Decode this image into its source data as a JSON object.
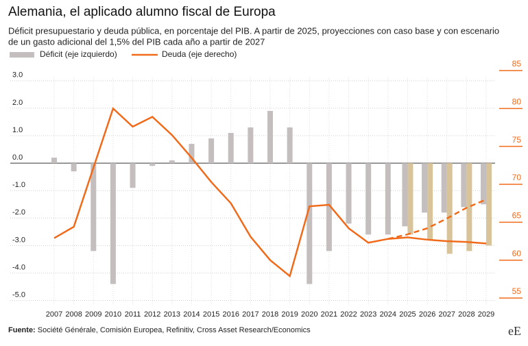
{
  "chart_data": {
    "type": "combo",
    "title": "Alemania, el aplicado alumno fiscal de Europa",
    "subtitle": [
      "Déficit presupuestario y deuda pública, en porcentaje del PIB. A partir de 2025, proyecciones con caso base y con escenario",
      "de un gasto adicional del 1,5% del PIB cada año a partir de 2027"
    ],
    "categories": [
      "2007",
      "2008",
      "2009",
      "2010",
      "2011",
      "2012",
      "2013",
      "2014",
      "2015",
      "2016",
      "2017",
      "2018",
      "2019",
      "2020",
      "2021",
      "2022",
      "2023",
      "2024",
      "2025",
      "2026",
      "2027",
      "2028",
      "2029"
    ],
    "series": [
      {
        "name": "Déficit (eje izquierdo)",
        "type": "bar",
        "axis": "y",
        "color": "#c4bebe",
        "values": [
          0.2,
          -0.3,
          -3.2,
          -4.4,
          -0.9,
          -0.1,
          0.1,
          0.7,
          0.9,
          1.1,
          1.3,
          1.9,
          1.3,
          -4.4,
          -3.2,
          -2.2,
          -2.6,
          -2.6,
          -2.3,
          -1.8,
          -1.8,
          -1.6,
          -1.5
        ]
      },
      {
        "type": "bar",
        "axis": "y",
        "color": "#d9c39a",
        "values": [
          null,
          null,
          null,
          null,
          null,
          null,
          null,
          null,
          null,
          null,
          null,
          null,
          null,
          null,
          null,
          null,
          null,
          null,
          -2.6,
          -2.8,
          -3.3,
          -3.2,
          -3.0
        ]
      },
      {
        "name": "Deuda (eje derecho)",
        "type": "line",
        "axis": "y2",
        "color": "#f06a1a",
        "dash": false,
        "values": [
          62.9,
          64.4,
          72.2,
          80.0,
          77.6,
          78.9,
          76.5,
          73.5,
          70.3,
          67.5,
          63.1,
          60.0,
          57.9,
          67.1,
          67.3,
          64.2,
          62.3,
          62.8,
          63.0,
          62.7,
          62.5,
          62.4,
          62.2
        ]
      },
      {
        "type": "line",
        "axis": "y2",
        "color": "#f06a1a",
        "dash": true,
        "values": [
          null,
          null,
          null,
          null,
          null,
          null,
          null,
          null,
          null,
          null,
          null,
          null,
          null,
          null,
          null,
          null,
          null,
          62.8,
          63.4,
          64.2,
          65.5,
          66.9,
          68.0
        ]
      }
    ],
    "ylim": [
      -5.16,
      3.37
    ],
    "yticks": [
      {
        "value": 3,
        "label": "3.0"
      },
      {
        "value": 2,
        "label": "2.0"
      },
      {
        "value": 1,
        "label": "1.0"
      },
      {
        "value": 0,
        "label": "0.0"
      },
      {
        "value": -1,
        "label": "-1.0"
      },
      {
        "value": -2,
        "label": "-2.0"
      },
      {
        "value": -3,
        "label": "-3.0"
      },
      {
        "value": -4,
        "label": "-4.0"
      },
      {
        "value": -5,
        "label": "-5.0"
      }
    ],
    "y2lim": [
      54.1,
      85
    ],
    "y2ticks": [
      85,
      80,
      75,
      70,
      65,
      60,
      55
    ],
    "y2color": "#f06a1a",
    "grid": true,
    "source_label": "Fuente:",
    "source": " Société Générale, Comisión Europea, Refinitiv, Cross Asset Research/Economics",
    "logo": "eE"
  }
}
